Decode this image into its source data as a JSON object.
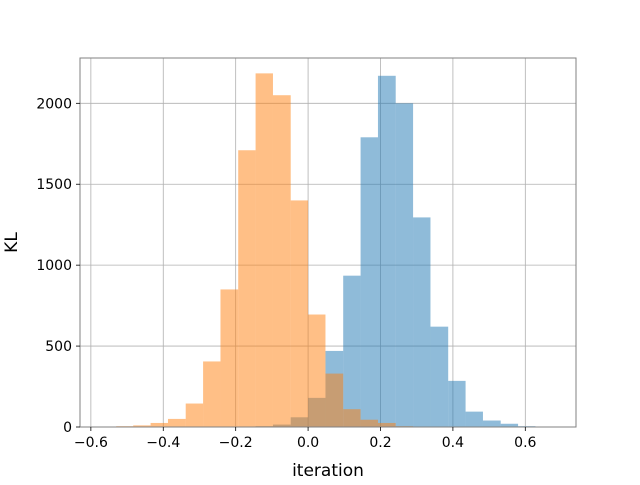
{
  "chart_data": {
    "type": "bar",
    "title": "",
    "xlabel": "iteration",
    "ylabel": "KL",
    "xlim": [
      -0.63,
      0.74
    ],
    "ylim": [
      0,
      2280
    ],
    "grid": true,
    "x_ticks": [
      -0.6,
      -0.4,
      -0.2,
      0.0,
      0.2,
      0.4,
      0.6
    ],
    "x_tick_labels": [
      "−0.6",
      "−0.4",
      "−0.2",
      "0.0",
      "0.2",
      "0.4",
      "0.6"
    ],
    "y_ticks": [
      0,
      500,
      1000,
      1500,
      2000
    ],
    "y_tick_labels": [
      "0",
      "500",
      "1000",
      "1500",
      "2000"
    ],
    "series": [
      {
        "color": "#1f77b4",
        "alpha": 0.5,
        "bins": [
          {
            "x0": -0.145,
            "x1": -0.097,
            "count": 5
          },
          {
            "x0": -0.097,
            "x1": -0.048,
            "count": 15
          },
          {
            "x0": -0.048,
            "x1": 0.0,
            "count": 60
          },
          {
            "x0": 0.0,
            "x1": 0.048,
            "count": 180
          },
          {
            "x0": 0.048,
            "x1": 0.097,
            "count": 470
          },
          {
            "x0": 0.097,
            "x1": 0.145,
            "count": 935
          },
          {
            "x0": 0.145,
            "x1": 0.193,
            "count": 1790
          },
          {
            "x0": 0.193,
            "x1": 0.242,
            "count": 2170
          },
          {
            "x0": 0.242,
            "x1": 0.29,
            "count": 2000
          },
          {
            "x0": 0.29,
            "x1": 0.338,
            "count": 1295
          },
          {
            "x0": 0.338,
            "x1": 0.387,
            "count": 620
          },
          {
            "x0": 0.387,
            "x1": 0.435,
            "count": 285
          },
          {
            "x0": 0.435,
            "x1": 0.483,
            "count": 95
          },
          {
            "x0": 0.483,
            "x1": 0.532,
            "count": 40
          },
          {
            "x0": 0.532,
            "x1": 0.58,
            "count": 20
          },
          {
            "x0": 0.58,
            "x1": 0.628,
            "count": 5
          }
        ]
      },
      {
        "color": "#ff7f0e",
        "alpha": 0.5,
        "bins": [
          {
            "x0": -0.53,
            "x1": -0.483,
            "count": 5
          },
          {
            "x0": -0.483,
            "x1": -0.435,
            "count": 10
          },
          {
            "x0": -0.435,
            "x1": -0.387,
            "count": 25
          },
          {
            "x0": -0.387,
            "x1": -0.338,
            "count": 50
          },
          {
            "x0": -0.338,
            "x1": -0.29,
            "count": 145
          },
          {
            "x0": -0.29,
            "x1": -0.242,
            "count": 405
          },
          {
            "x0": -0.242,
            "x1": -0.193,
            "count": 850
          },
          {
            "x0": -0.193,
            "x1": -0.145,
            "count": 1710
          },
          {
            "x0": -0.145,
            "x1": -0.097,
            "count": 2185
          },
          {
            "x0": -0.097,
            "x1": -0.048,
            "count": 2050
          },
          {
            "x0": -0.048,
            "x1": 0.0,
            "count": 1400
          },
          {
            "x0": 0.0,
            "x1": 0.048,
            "count": 695
          },
          {
            "x0": 0.048,
            "x1": 0.097,
            "count": 330
          },
          {
            "x0": 0.097,
            "x1": 0.145,
            "count": 110
          },
          {
            "x0": 0.145,
            "x1": 0.193,
            "count": 45
          },
          {
            "x0": 0.193,
            "x1": 0.242,
            "count": 25
          },
          {
            "x0": 0.242,
            "x1": 0.29,
            "count": 5
          }
        ]
      }
    ]
  }
}
